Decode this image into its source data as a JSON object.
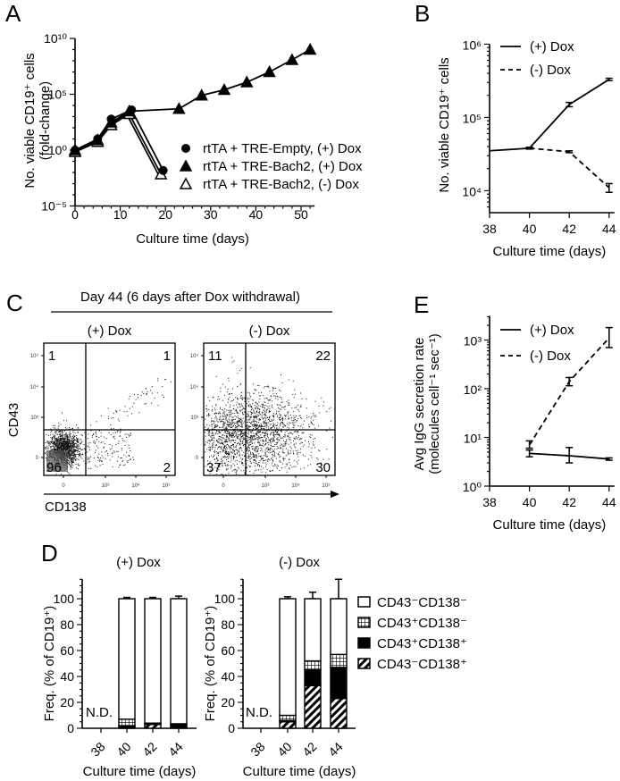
{
  "colors": {
    "ink": "#000000",
    "background": "#ffffff",
    "gate": "#000000"
  },
  "chart_data": [
    {
      "panel": "A",
      "type": "line",
      "yscale": "log",
      "xlabel": "Culture time (days)",
      "ylabel": [
        "No. viable CD19⁺ cells",
        "(fold-change)"
      ],
      "xlim": [
        0,
        52
      ],
      "ylim_log10": [
        -5,
        10
      ],
      "xticks": [
        "0",
        "10",
        "20",
        "30",
        "40",
        "50"
      ],
      "yticks": [
        "10⁻⁵",
        "10⁰",
        "10⁵",
        "10¹⁰"
      ],
      "legend_position": "right-middle",
      "series": [
        {
          "name": "rtTA + TRE-Empty, (+) Dox",
          "marker": "filled-circle",
          "x": [
            0,
            5,
            8,
            12.5,
            19.5
          ],
          "y": [
            1,
            10,
            600,
            4000,
            0.015
          ]
        },
        {
          "name": "rtTA + TRE-Bach2, (+) Dox",
          "marker": "filled-triangle",
          "x": [
            0,
            5,
            8,
            12,
            23,
            28,
            33,
            38,
            43,
            48,
            52
          ],
          "y": [
            1,
            8,
            300,
            3000,
            5000,
            80000,
            250000,
            1200000,
            10000000,
            120000000,
            1000000000
          ]
        },
        {
          "name": "rtTA + TRE-Bach2, (-) Dox",
          "marker": "open-triangle",
          "x": [
            0,
            5,
            8,
            12,
            19
          ],
          "y": [
            1,
            8,
            250,
            2500,
            0.01
          ]
        }
      ]
    },
    {
      "panel": "B",
      "type": "line",
      "yscale": "log",
      "xlabel": "Culture time (days)",
      "ylabel": "No. viable CD19⁺ cells",
      "xlim": [
        38,
        44
      ],
      "ylim_log10": [
        3.7,
        6
      ],
      "xticks": [
        "38",
        "40",
        "42",
        "44"
      ],
      "yticks": [
        "10⁴",
        "10⁵",
        "10⁶"
      ],
      "legend_position": "top-left",
      "series": [
        {
          "name": "(+) Dox",
          "style": "solid",
          "x": [
            38,
            40,
            42,
            44
          ],
          "y": [
            35000,
            38000,
            150000,
            330000
          ],
          "err": [
            0,
            1000,
            10000,
            12000
          ]
        },
        {
          "name": "(-) Dox",
          "style": "dashed",
          "x": [
            40,
            42,
            44
          ],
          "y": [
            38000,
            34000,
            11000
          ],
          "err": [
            1000,
            1000,
            1500
          ]
        }
      ]
    },
    {
      "panel": "C",
      "type": "scatter",
      "title": "Day 44 (6 days after Dox withdrawal)",
      "xlabel": "CD138",
      "ylabel": "CD43",
      "xticks": [
        "0",
        "10³",
        "10⁴",
        "10⁵"
      ],
      "yticks": [
        "0",
        "10³",
        "10⁴",
        "10⁵"
      ],
      "plots": [
        {
          "name": "(+) Dox",
          "quadrants": {
            "upper_left": "1",
            "upper_right": "1",
            "lower_left": "96",
            "lower_right": "2"
          }
        },
        {
          "name": "(-) Dox",
          "quadrants": {
            "upper_left": "11",
            "upper_right": "22",
            "lower_left": "37",
            "lower_right": "30"
          }
        }
      ]
    },
    {
      "panel": "E",
      "type": "line",
      "yscale": "log",
      "xlabel": "Culture time (days)",
      "ylabel": [
        "Avg IgG secretion rate",
        "(molecules cell⁻¹ sec⁻¹)"
      ],
      "xlim": [
        38,
        44
      ],
      "ylim_log10": [
        0,
        3.5
      ],
      "xticks": [
        "38",
        "40",
        "42",
        "44"
      ],
      "yticks": [
        "10⁰",
        "10¹",
        "10²",
        "10³"
      ],
      "legend_position": "top-left",
      "series": [
        {
          "name": "(+) Dox",
          "style": "solid",
          "x": [
            40,
            42,
            44
          ],
          "y": [
            4.7,
            4.2,
            3.6
          ],
          "lo": [
            4.0,
            3.0,
            3.4
          ],
          "hi": [
            5.5,
            6.2,
            3.8
          ]
        },
        {
          "name": "(-) Dox",
          "style": "dashed",
          "x": [
            40,
            42,
            44
          ],
          "y": [
            7,
            140,
            1100
          ],
          "lo": [
            6,
            115,
            700
          ],
          "hi": [
            8.5,
            170,
            1800
          ]
        }
      ]
    },
    {
      "panel": "D",
      "type": "bar",
      "stacked": true,
      "xlabel": "Culture time (days)",
      "ylabel": "Freq. (% of CD19⁺)",
      "ylim": [
        0,
        115
      ],
      "yticks": [
        "0",
        "20",
        "40",
        "60",
        "80",
        "100"
      ],
      "categories": [
        "38",
        "40",
        "42",
        "44"
      ],
      "not_determined_label": "N.D.",
      "legend": [
        "CD43⁻CD138⁻",
        "CD43⁺CD138⁻",
        "CD43⁺CD138⁺",
        "CD43⁻CD138⁺"
      ],
      "legend_position": "right",
      "subplots": [
        {
          "title": "(+) Dox",
          "series": [
            {
              "name": "CD43⁻CD138⁺",
              "values": [
                null,
                1,
                3,
                1
              ]
            },
            {
              "name": "CD43⁺CD138⁺",
              "values": [
                null,
                1,
                0.5,
                2
              ]
            },
            {
              "name": "CD43⁺CD138⁻",
              "values": [
                null,
                5,
                0.5,
                0.5
              ]
            },
            {
              "name": "CD43⁻CD138⁻",
              "values": [
                null,
                93,
                96,
                96.5
              ]
            }
          ],
          "error_top": [
            null,
            1,
            1,
            2
          ],
          "error_inner": [
            null,
            1,
            0.5,
            0.8
          ]
        },
        {
          "title": "(-) Dox",
          "series": [
            {
              "name": "CD43⁻CD138⁺",
              "values": [
                null,
                5,
                33,
                23
              ]
            },
            {
              "name": "CD43⁺CD138⁺",
              "values": [
                null,
                1,
                12,
                24
              ]
            },
            {
              "name": "CD43⁺CD138⁻",
              "values": [
                null,
                4,
                7,
                10
              ]
            },
            {
              "name": "CD43⁻CD138⁻",
              "values": [
                null,
                90,
                48,
                43
              ]
            }
          ],
          "error_top": [
            null,
            1.5,
            5,
            15
          ],
          "error_inner": [
            null,
            1,
            3,
            3
          ]
        }
      ]
    }
  ]
}
